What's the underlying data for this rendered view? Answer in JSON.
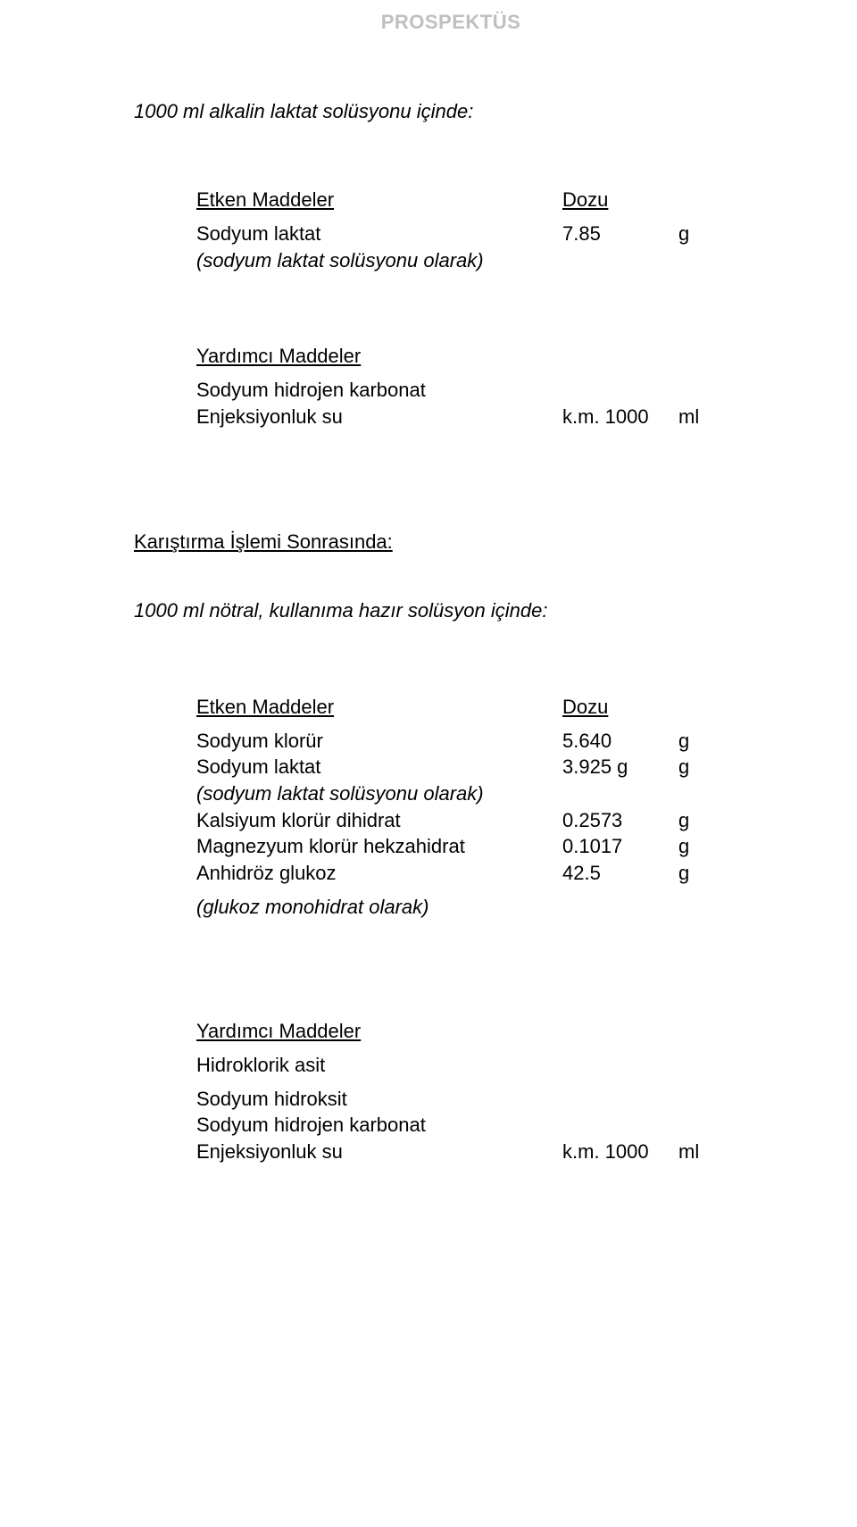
{
  "header": "PROSPEKTÜS",
  "section1": {
    "title": "1000 ml alkalin laktat solüsyonu içinde:",
    "active_header_label": "Etken Maddeler",
    "dose_header": "Dozu",
    "rows": [
      {
        "label": "Sodyum laktat",
        "value": "7.85",
        "unit": "g"
      }
    ],
    "note": "(sodyum laktat solüsyonu olarak)",
    "aux_header": "Yardımcı Maddeler",
    "aux_rows": [
      {
        "label": "Sodyum hidrojen karbonat",
        "value": "",
        "unit": ""
      },
      {
        "label": "Enjeksiyonluk su",
        "value": "k.m. 1000",
        "unit": "ml"
      }
    ]
  },
  "section2": {
    "title": "Karıştırma İşlemi Sonrasında:",
    "subtitle": "1000 ml nötral, kullanıma hazır solüsyon içinde:",
    "active_header_label": "Etken Maddeler",
    "dose_header": "Dozu",
    "rows": [
      {
        "label": "Sodyum klorür",
        "value": "5.640",
        "unit": "g"
      },
      {
        "label": "Sodyum laktat",
        "value": "3.925 g",
        "unit": "g"
      },
      {
        "label_italic": "(sodyum laktat solüsyonu olarak)",
        "label": "",
        "value": "",
        "unit": ""
      },
      {
        "label": "Kalsiyum klorür dihidrat",
        "value": "0.2573",
        "unit": "g"
      },
      {
        "label": "Magnezyum klorür hekzahidrat",
        "value": "0.1017",
        "unit": "g"
      },
      {
        "label": "Anhidröz glukoz",
        "value": "42.5",
        "unit": "g"
      }
    ],
    "note": "(glukoz monohidrat olarak)",
    "aux_header": "Yardımcı Maddeler",
    "aux_rows": [
      {
        "label": "Hidroklorik asit",
        "value": "",
        "unit": ""
      },
      {
        "label": "Sodyum hidroksit",
        "value": "",
        "unit": ""
      },
      {
        "label": "Sodyum hidrojen karbonat",
        "value": "",
        "unit": ""
      },
      {
        "label": "Enjeksiyonluk su",
        "value": "k.m. 1000",
        "unit": "ml"
      }
    ]
  }
}
